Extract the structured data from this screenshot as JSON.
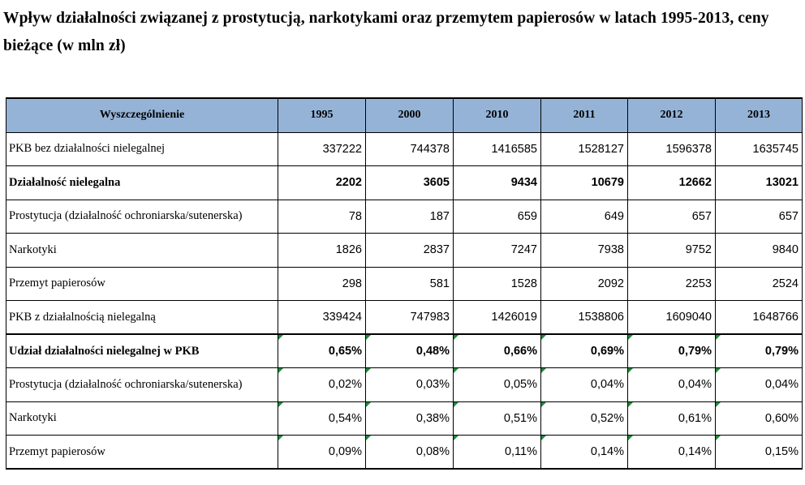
{
  "title": "Wpływ działalności związanej z prostytucją, narkotykami oraz przemytem papierosów w latach 1995-2013, ceny bieżące (w mln zł)",
  "table": {
    "header": {
      "label": "Wyszczególnienie",
      "years": [
        "1995",
        "2000",
        "2010",
        "2011",
        "2012",
        "2013"
      ]
    },
    "rows": [
      {
        "label": "PKB bez działalności nielegalnej",
        "values": [
          "337222",
          "744378",
          "1416585",
          "1528127",
          "1596378",
          "1635745"
        ]
      },
      {
        "label": "Działalność nielegalna",
        "values": [
          "2202",
          "3605",
          "9434",
          "10679",
          "12662",
          "13021"
        ]
      },
      {
        "label": "Prostytucja  (działalność ochroniarska/sutenerska)",
        "values": [
          "78",
          "187",
          "659",
          "649",
          "657",
          "657"
        ]
      },
      {
        "label": "Narkotyki",
        "values": [
          "1826",
          "2837",
          "7247",
          "7938",
          "9752",
          "9840"
        ]
      },
      {
        "label": "Przemyt papierosów",
        "values": [
          "298",
          "581",
          "1528",
          "2092",
          "2253",
          "2524"
        ]
      },
      {
        "label": "PKB z działalnością nielegalną",
        "values": [
          "339424",
          "747983",
          "1426019",
          "1538806",
          "1609040",
          "1648766"
        ]
      },
      {
        "label": "Udział działalności nielegalnej w PKB",
        "values": [
          "0,65%",
          "0,48%",
          "0,66%",
          "0,69%",
          "0,79%",
          "0,79%"
        ]
      },
      {
        "label": "Prostytucja  (działalność ochroniarska/sutenerska)",
        "values": [
          "0,02%",
          "0,03%",
          "0,05%",
          "0,04%",
          "0,04%",
          "0,04%"
        ]
      },
      {
        "label": "Narkotyki",
        "values": [
          "0,54%",
          "0,38%",
          "0,51%",
          "0,52%",
          "0,61%",
          "0,60%"
        ]
      },
      {
        "label": "Przemyt papierosów",
        "values": [
          "0,09%",
          "0,08%",
          "0,11%",
          "0,14%",
          "0,14%",
          "0,15%"
        ]
      }
    ]
  },
  "colors": {
    "header_bg": "#95b3d7",
    "cell_marker": "#1d8a3a"
  }
}
